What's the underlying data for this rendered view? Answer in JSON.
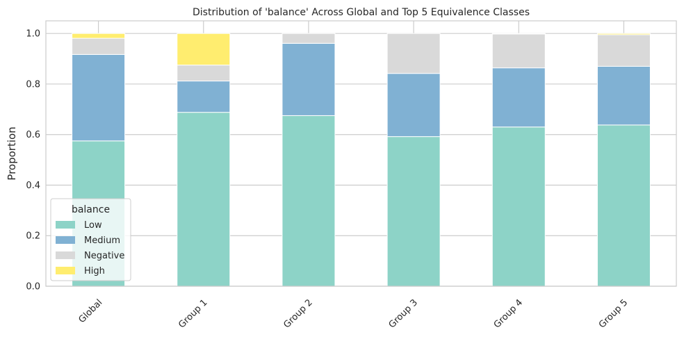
{
  "chart_data": {
    "type": "bar",
    "stacked": true,
    "title": "Distribution of 'balance' Across Global and Top 5 Equivalence Classes",
    "xlabel": "",
    "ylabel": "Proportion",
    "ylim": [
      0,
      1.05
    ],
    "yticks": [
      "0.0",
      "0.2",
      "0.4",
      "0.6",
      "0.8",
      "1.0"
    ],
    "grid": true,
    "legend_title": "balance",
    "legend_position": "lower-left",
    "categories": [
      "Global",
      "Group 1",
      "Group 2",
      "Group 3",
      "Group 4",
      "Group 5"
    ],
    "series": [
      {
        "name": "Low",
        "color": "#8dd3c7",
        "values": [
          0.575,
          0.688,
          0.675,
          0.592,
          0.63,
          0.638
        ]
      },
      {
        "name": "Medium",
        "color": "#80b1d3",
        "values": [
          0.342,
          0.124,
          0.286,
          0.25,
          0.234,
          0.232
        ]
      },
      {
        "name": "Negative",
        "color": "#d9d9d9",
        "values": [
          0.064,
          0.063,
          0.039,
          0.158,
          0.134,
          0.125
        ]
      },
      {
        "name": "High",
        "color": "#ffed6f",
        "values": [
          0.019,
          0.125,
          0.0,
          0.0,
          0.002,
          0.005
        ]
      }
    ]
  }
}
